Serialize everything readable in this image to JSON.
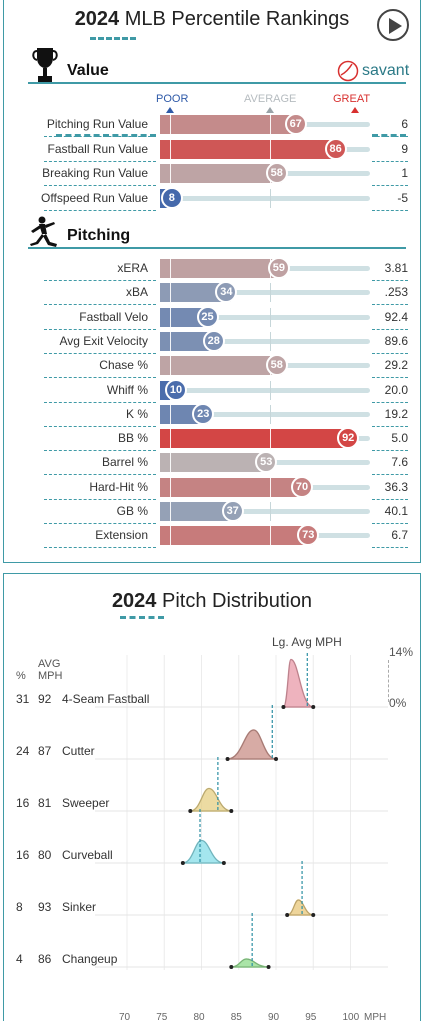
{
  "percentile": {
    "year": "2024",
    "title_rest": "MLB Percentile Rankings",
    "value_section": "Value",
    "pitching_section": "Pitching",
    "brand": "savant",
    "scale": {
      "poor": "POOR",
      "average": "AVERAGE",
      "great": "GREAT"
    },
    "colors": {
      "poor": "#2f5aa8",
      "great": "#d8302f",
      "accent": "#3f9aa6"
    },
    "value_rows": [
      {
        "label": "Pitching Run Value",
        "pct": "67",
        "value": "6"
      },
      {
        "label": "Fastball Run Value",
        "pct": "86",
        "value": "9"
      },
      {
        "label": "Breaking Run Value",
        "pct": "58",
        "value": "1"
      },
      {
        "label": "Offspeed Run Value",
        "pct": "8",
        "value": "-5"
      }
    ],
    "pitching_rows": [
      {
        "label": "xERA",
        "pct": "59",
        "value": "3.81"
      },
      {
        "label": "xBA",
        "pct": "34",
        "value": ".253"
      },
      {
        "label": "Fastball Velo",
        "pct": "25",
        "value": "92.4"
      },
      {
        "label": "Avg Exit Velocity",
        "pct": "28",
        "value": "89.6"
      },
      {
        "label": "Chase %",
        "pct": "58",
        "value": "29.2"
      },
      {
        "label": "Whiff %",
        "pct": "10",
        "value": "20.0"
      },
      {
        "label": "K %",
        "pct": "23",
        "value": "19.2"
      },
      {
        "label": "BB %",
        "pct": "92",
        "value": "5.0"
      },
      {
        "label": "Barrel %",
        "pct": "53",
        "value": "7.6"
      },
      {
        "label": "Hard-Hit %",
        "pct": "70",
        "value": "36.3"
      },
      {
        "label": "GB %",
        "pct": "37",
        "value": "40.1"
      },
      {
        "label": "Extension",
        "pct": "73",
        "value": "6.7"
      }
    ]
  },
  "distribution": {
    "year": "2024",
    "title_rest": "Pitch Distribution",
    "lg_avg_label": "Lg. Avg MPH",
    "pct_header": "%",
    "avg_header_1": "AVG",
    "avg_header_2": "MPH",
    "scale_max": "14%",
    "scale_min": "0%",
    "axis_unit": "MPH",
    "axis_ticks": [
      "70",
      "75",
      "80",
      "85",
      "90",
      "95",
      "100"
    ],
    "pitches": [
      {
        "pct": "31",
        "mph": "92",
        "name": "4-Seam Fastball",
        "lg_avg": 94.2,
        "min": 91,
        "max": 95,
        "peak": 0.95,
        "color": "#e89aa8"
      },
      {
        "pct": "24",
        "mph": "87",
        "name": "Cutter",
        "lg_avg": 89.5,
        "min": 83.5,
        "max": 90,
        "peak": 0.58,
        "color": "#c98f87"
      },
      {
        "pct": "16",
        "mph": "81",
        "name": "Sweeper",
        "lg_avg": 82.2,
        "min": 78.5,
        "max": 84,
        "peak": 0.45,
        "color": "#e6cf83"
      },
      {
        "pct": "16",
        "mph": "80",
        "name": "Curveball",
        "lg_avg": 79.8,
        "min": 77.5,
        "max": 83,
        "peak": 0.45,
        "color": "#86dde8"
      },
      {
        "pct": "8",
        "mph": "93",
        "name": "Sinker",
        "lg_avg": 93.5,
        "min": 91.5,
        "max": 95,
        "peak": 0.3,
        "color": "#e8c77a"
      },
      {
        "pct": "4",
        "mph": "86",
        "name": "Changeup",
        "lg_avg": 86.8,
        "min": 84,
        "max": 89,
        "peak": 0.16,
        "color": "#8edb8a"
      }
    ]
  }
}
